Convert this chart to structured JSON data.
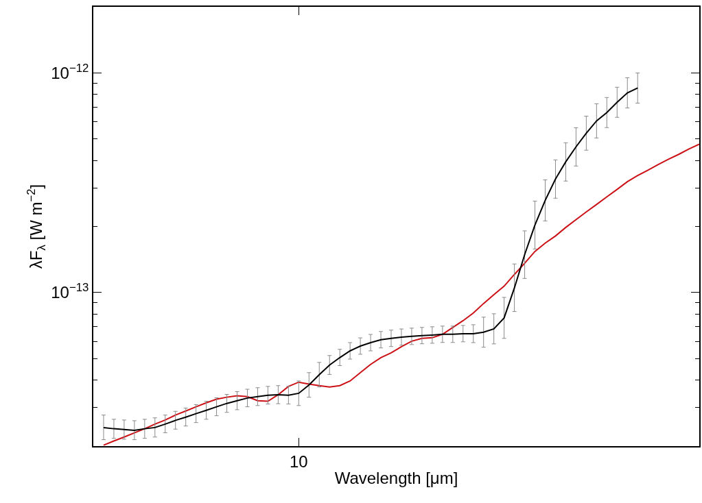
{
  "chart_data": {
    "type": "line",
    "xlabel": "Wavelength [μm]",
    "ylabel": "λF$_{λ}$ [W m$^{−2}$]",
    "log": "y",
    "marker": "none",
    "line_style": "solid",
    "categories": [
      null,
      null,
      null,
      null,
      null,
      null,
      null,
      null,
      null,
      null,
      null,
      null,
      null,
      null,
      null,
      null,
      null,
      null,
      null,
      null,
      "10",
      null,
      null,
      null,
      null,
      null,
      null,
      null,
      null,
      null,
      null,
      null,
      null,
      null,
      null,
      null,
      null,
      null,
      null,
      null,
      null,
      null,
      null,
      null,
      null,
      null,
      null,
      null,
      null,
      null,
      null,
      null,
      null,
      null,
      null,
      null,
      null,
      null,
      null,
      null
    ],
    "ylim": [
      2e-14,
      2e-12
    ],
    "yticks": [
      {
        "value": 2e-14,
        "label": null
      },
      {
        "value": 3e-14,
        "label": null
      },
      {
        "value": 4e-14,
        "label": null
      },
      {
        "value": 5e-14,
        "label": null
      },
      {
        "value": 6e-14,
        "label": null
      },
      {
        "value": 7e-14,
        "label": null
      },
      {
        "value": 8e-14,
        "label": null
      },
      {
        "value": 9e-14,
        "label": null
      },
      {
        "value": 1e-13,
        "label": "10$^{−13}$"
      },
      {
        "value": 2e-13,
        "label": null
      },
      {
        "value": 3e-13,
        "label": null
      },
      {
        "value": 4e-13,
        "label": null
      },
      {
        "value": 5e-13,
        "label": null
      },
      {
        "value": 6e-13,
        "label": null
      },
      {
        "value": 7e-13,
        "label": null
      },
      {
        "value": 8e-13,
        "label": null
      },
      {
        "value": 9e-13,
        "label": null
      },
      {
        "value": 1e-12,
        "label": "10$^{−12}$"
      }
    ],
    "series": [
      {
        "color": "#cc1016",
        "values": [
          null,
          2.02e-14,
          2.11e-14,
          2.2e-14,
          2.3e-14,
          2.4e-14,
          2.52e-14,
          2.63e-14,
          2.77e-14,
          2.89e-14,
          3.02e-14,
          3.15e-14,
          3.27e-14,
          3.34e-14,
          3.39e-14,
          3.36e-14,
          3.22e-14,
          3.2e-14,
          3.43e-14,
          3.74e-14,
          3.91e-14,
          3.83e-14,
          3.77e-14,
          3.72e-14,
          3.77e-14,
          3.96e-14,
          4.32e-14,
          4.71e-14,
          5.06e-14,
          5.32e-14,
          5.67e-14,
          6.01e-14,
          6.19e-14,
          6.23e-14,
          6.46e-14,
          6.94e-14,
          7.45e-14,
          8.07e-14,
          8.92e-14,
          9.79e-14,
          1.07e-13,
          1.21e-13,
          1.36e-13,
          1.54e-13,
          1.68e-13,
          1.81e-13,
          1.98e-13,
          2.15e-13,
          2.33e-13,
          2.52e-13,
          2.73e-13,
          2.95e-13,
          3.2e-13,
          3.41e-13,
          3.61e-13,
          3.83e-13,
          4.05e-13,
          4.26e-13,
          4.51e-13,
          4.74e-13
        ]
      },
      {
        "color": "#000000",
        "values": [
          null,
          2.43e-14,
          2.4e-14,
          2.38e-14,
          2.36e-14,
          2.4e-14,
          2.43e-14,
          2.52e-14,
          2.62e-14,
          2.71e-14,
          2.81e-14,
          2.91e-14,
          3.02e-14,
          3.13e-14,
          3.22e-14,
          3.31e-14,
          3.36e-14,
          3.41e-14,
          3.43e-14,
          3.41e-14,
          3.48e-14,
          3.8e-14,
          4.23e-14,
          4.68e-14,
          5.06e-14,
          5.43e-14,
          5.71e-14,
          5.92e-14,
          6.1e-14,
          6.19e-14,
          6.27e-14,
          6.32e-14,
          6.37e-14,
          6.41e-14,
          6.46e-14,
          6.46e-14,
          6.5e-14,
          6.5e-14,
          6.6e-14,
          6.84e-14,
          7.67e-14,
          1.05e-13,
          1.49e-13,
          2.03e-13,
          2.63e-13,
          3.29e-13,
          3.94e-13,
          4.61e-13,
          5.32e-13,
          6.05e-13,
          6.6e-13,
          7.35e-13,
          8.12e-13,
          8.54e-13,
          null,
          null,
          null,
          null,
          null,
          null
        ],
        "errors": [
          null,
          [
            2.14e-14,
            2.77e-14
          ],
          [
            2.17e-14,
            2.65e-14
          ],
          [
            2.15e-14,
            2.63e-14
          ],
          [
            2.14e-14,
            2.61e-14
          ],
          [
            2.17e-14,
            2.65e-14
          ],
          [
            2.2e-14,
            2.69e-14
          ],
          [
            2.3e-14,
            2.77e-14
          ],
          [
            2.39e-14,
            2.88e-14
          ],
          [
            2.47e-14,
            2.98e-14
          ],
          [
            2.56e-14,
            3.09e-14
          ],
          [
            2.65e-14,
            3.2e-14
          ],
          [
            2.75e-14,
            3.32e-14
          ],
          [
            2.85e-14,
            3.44e-14
          ],
          [
            2.93e-14,
            3.54e-14
          ],
          [
            3.02e-14,
            3.63e-14
          ],
          [
            3.06e-14,
            3.69e-14
          ],
          [
            3.11e-14,
            3.74e-14
          ],
          [
            3.12e-14,
            3.77e-14
          ],
          [
            3.11e-14,
            3.74e-14
          ],
          [
            3.06e-14,
            3.96e-14
          ],
          [
            3.34e-14,
            4.32e-14
          ],
          [
            3.72e-14,
            4.81e-14
          ],
          [
            4.24e-14,
            5.17e-14
          ],
          [
            4.65e-14,
            5.52e-14
          ],
          [
            4.98e-14,
            5.92e-14
          ],
          [
            5.24e-14,
            6.22e-14
          ],
          [
            5.43e-14,
            6.45e-14
          ],
          [
            5.6e-14,
            6.65e-14
          ],
          [
            5.68e-14,
            6.75e-14
          ],
          [
            5.76e-14,
            6.83e-14
          ],
          [
            5.8e-14,
            6.89e-14
          ],
          [
            5.85e-14,
            6.94e-14
          ],
          [
            5.88e-14,
            6.99e-14
          ],
          [
            5.93e-14,
            7.04e-14
          ],
          [
            5.93e-14,
            7.04e-14
          ],
          [
            5.97e-14,
            7.09e-14
          ],
          [
            5.92e-14,
            7.14e-14
          ],
          [
            5.64e-14,
            7.73e-14
          ],
          [
            5.84e-14,
            8.01e-14
          ],
          [
            6.19e-14,
            9.51e-14
          ],
          [
            8.2e-14,
            1.35e-13
          ],
          [
            1.16e-13,
            1.91e-13
          ],
          [
            1.58e-13,
            2.61e-13
          ],
          [
            2.12e-13,
            3.26e-13
          ],
          [
            2.69e-13,
            4.02e-13
          ],
          [
            3.22e-13,
            4.81e-13
          ],
          [
            3.77e-13,
            5.63e-13
          ],
          [
            4.45e-13,
            6.36e-13
          ],
          [
            5.06e-13,
            7.24e-13
          ],
          [
            5.64e-13,
            7.73e-13
          ],
          [
            6.28e-13,
            8.61e-13
          ],
          [
            6.93e-13,
            9.51e-13
          ],
          [
            7.29e-13,
            1e-12
          ],
          null,
          null,
          null,
          null,
          null,
          null
        ]
      }
    ]
  }
}
